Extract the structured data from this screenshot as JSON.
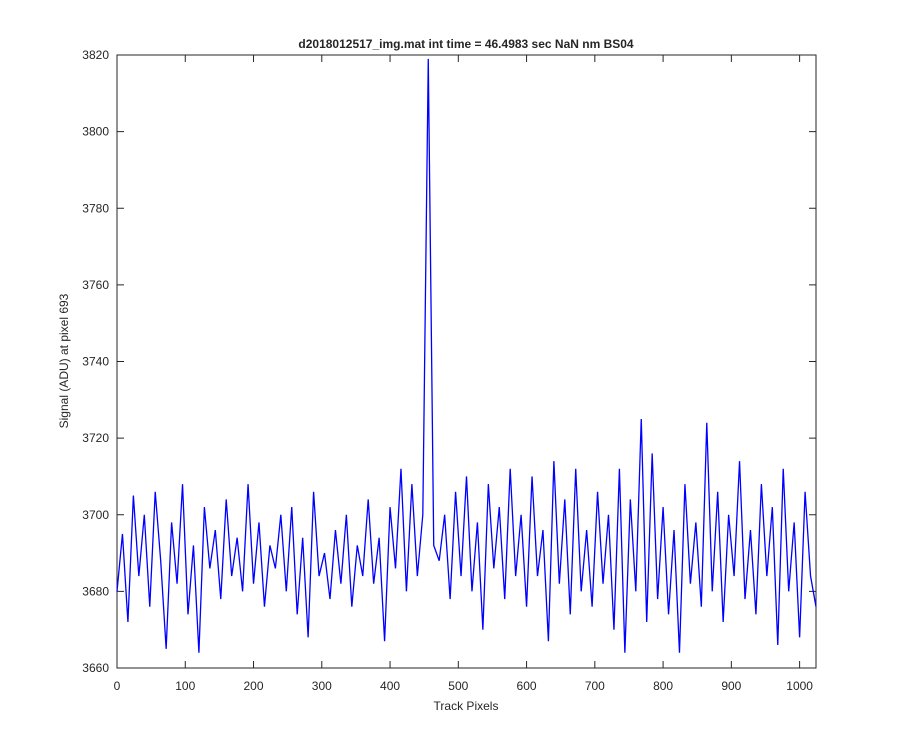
{
  "chart_data": {
    "type": "line",
    "title": "d2018012517_img.mat int time = 46.4983 sec  NaN nm BS04",
    "xlabel": "Track Pixels",
    "ylabel": "Signal (ADU) at pixel 693",
    "color": "#0000ff",
    "xlim": [
      0,
      1024
    ],
    "ylim": [
      3660,
      3820
    ],
    "xticks": [
      0,
      100,
      200,
      300,
      400,
      500,
      600,
      700,
      800,
      900,
      1000
    ],
    "yticks": [
      3660,
      3680,
      3700,
      3720,
      3740,
      3760,
      3780,
      3800,
      3820
    ],
    "x": [
      0,
      8,
      16,
      24,
      32,
      40,
      48,
      56,
      64,
      72,
      80,
      88,
      96,
      104,
      112,
      120,
      128,
      136,
      144,
      152,
      160,
      168,
      176,
      184,
      192,
      200,
      208,
      216,
      224,
      232,
      240,
      248,
      256,
      264,
      272,
      280,
      288,
      296,
      304,
      312,
      320,
      328,
      336,
      344,
      352,
      360,
      368,
      376,
      384,
      392,
      400,
      408,
      416,
      424,
      432,
      440,
      448,
      456,
      464,
      472,
      480,
      488,
      496,
      504,
      512,
      520,
      528,
      536,
      544,
      552,
      560,
      568,
      576,
      584,
      592,
      600,
      608,
      616,
      624,
      632,
      640,
      648,
      656,
      664,
      672,
      680,
      688,
      696,
      704,
      712,
      720,
      728,
      736,
      744,
      752,
      760,
      768,
      776,
      784,
      792,
      800,
      808,
      816,
      824,
      832,
      840,
      848,
      856,
      864,
      872,
      880,
      888,
      896,
      904,
      912,
      920,
      928,
      936,
      944,
      952,
      960,
      968,
      976,
      984,
      992,
      1000,
      1008,
      1016,
      1024
    ],
    "values": [
      3680,
      3695,
      3672,
      3705,
      3684,
      3700,
      3676,
      3706,
      3688,
      3665,
      3698,
      3682,
      3708,
      3674,
      3692,
      3664,
      3702,
      3686,
      3696,
      3678,
      3704,
      3684,
      3694,
      3680,
      3708,
      3682,
      3698,
      3676,
      3692,
      3686,
      3700,
      3680,
      3702,
      3674,
      3694,
      3668,
      3706,
      3684,
      3690,
      3678,
      3696,
      3682,
      3700,
      3676,
      3692,
      3684,
      3704,
      3682,
      3694,
      3667,
      3702,
      3686,
      3712,
      3680,
      3708,
      3684,
      3700,
      3819,
      3692,
      3688,
      3700,
      3678,
      3706,
      3684,
      3710,
      3680,
      3698,
      3670,
      3708,
      3686,
      3702,
      3678,
      3712,
      3684,
      3700,
      3676,
      3710,
      3684,
      3696,
      3667,
      3714,
      3682,
      3704,
      3674,
      3712,
      3680,
      3696,
      3676,
      3706,
      3682,
      3700,
      3670,
      3712,
      3664,
      3704,
      3680,
      3725,
      3672,
      3716,
      3678,
      3702,
      3674,
      3696,
      3664,
      3708,
      3682,
      3698,
      3676,
      3724,
      3680,
      3706,
      3672,
      3700,
      3684,
      3714,
      3678,
      3696,
      3674,
      3708,
      3684,
      3702,
      3666,
      3712,
      3680,
      3698,
      3668,
      3706,
      3684,
      3676
    ]
  }
}
